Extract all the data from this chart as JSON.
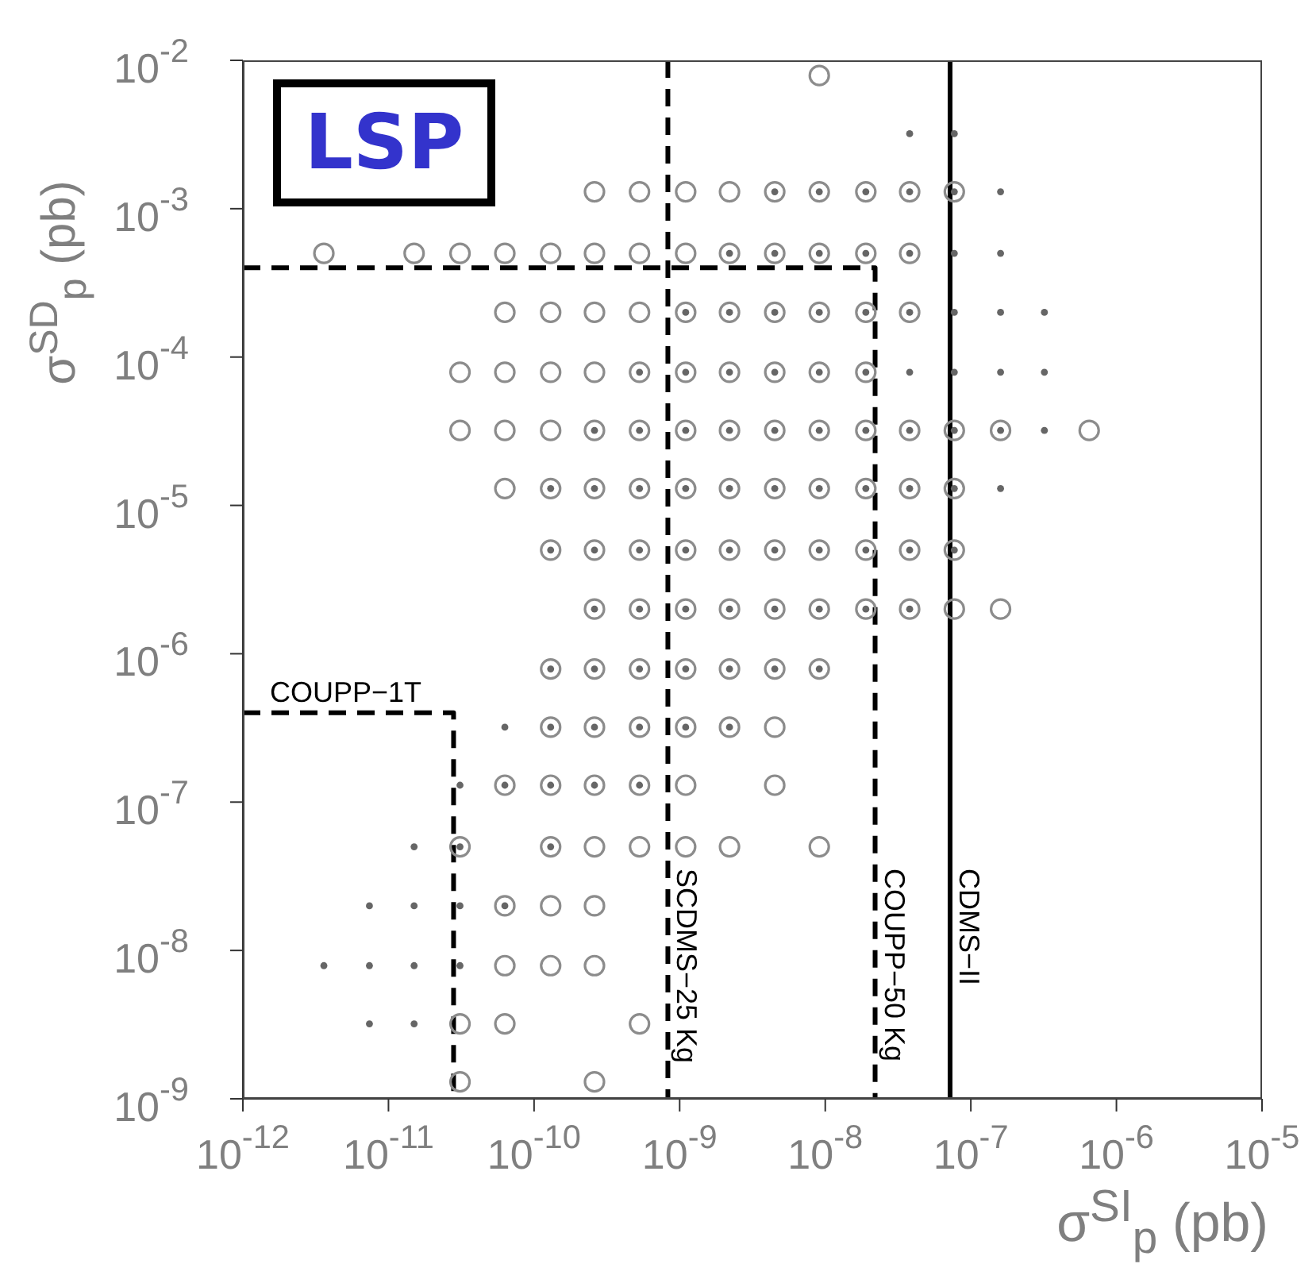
{
  "chart_data": {
    "type": "scatter",
    "xlabel": "σ$^{SI}$$_{p}$ (pb)",
    "ylabel": "σ$^{SD}$$_{p}$ (pb)",
    "annotations": [
      "LSP"
    ],
    "log": "xy",
    "grid": false,
    "legend": false,
    "xlim": [
      1e-12,
      1e-05
    ],
    "ylim": [
      1e-09,
      0.01
    ],
    "xticks": [
      {
        "value": 1e-12,
        "label": "10$^{-12}$"
      },
      {
        "value": 1e-11,
        "label": "10$^{-11}$"
      },
      {
        "value": 1e-10,
        "label": "10$^{-10}$"
      },
      {
        "value": 1e-09,
        "label": "10$^{-9}$"
      },
      {
        "value": 1e-08,
        "label": "10$^{-8}$"
      },
      {
        "value": 1e-07,
        "label": "10$^{-7}$"
      },
      {
        "value": 1e-06,
        "label": "10$^{-6}$"
      },
      {
        "value": 1e-05,
        "label": "10$^{-5}$"
      }
    ],
    "yticks": [
      {
        "value": 1e-09,
        "label": "10$^{-9}$"
      },
      {
        "value": 1e-08,
        "label": "10$^{-8}$"
      },
      {
        "value": 1e-07,
        "label": "10$^{-7}$"
      },
      {
        "value": 1e-06,
        "label": "10$^{-6}$"
      },
      {
        "value": 1e-05,
        "label": "10$^{-5}$"
      },
      {
        "value": 0.0001,
        "label": "10$^{-4}$"
      },
      {
        "value": 0.001,
        "label": "10$^{-3}$"
      },
      {
        "value": 0.01,
        "label": "10$^{-2}$"
      }
    ],
    "series": [
      {
        "type": "scatter",
        "marker": "circle",
        "color": "#8c8c8c",
        "x": [
          9.1e-09,
          2.6e-10,
          5.3e-10,
          1.1e-09,
          2.2e-09,
          4.5e-09,
          9.1e-09,
          1.9e-08,
          3.8e-08,
          7.7e-08,
          3.6e-12,
          1.5e-11,
          3.1e-11,
          6.3e-11,
          1.3e-10,
          2.6e-10,
          5.3e-10,
          1.1e-09,
          2.2e-09,
          4.5e-09,
          9.1e-09,
          1.9e-08,
          3.8e-08,
          6.3e-11,
          1.3e-10,
          2.6e-10,
          5.3e-10,
          1.1e-09,
          2.2e-09,
          4.5e-09,
          9.1e-09,
          1.9e-08,
          3.8e-08,
          3.1e-11,
          6.3e-11,
          1.3e-10,
          2.6e-10,
          5.3e-10,
          1.1e-09,
          2.2e-09,
          4.5e-09,
          9.1e-09,
          1.9e-08,
          3.1e-11,
          6.3e-11,
          1.3e-10,
          2.6e-10,
          5.3e-10,
          1.1e-09,
          2.2e-09,
          4.5e-09,
          9.1e-09,
          1.9e-08,
          3.8e-08,
          7.7e-08,
          1.6e-07,
          6.5e-07,
          6.3e-11,
          1.3e-10,
          2.6e-10,
          5.3e-10,
          1.1e-09,
          2.2e-09,
          4.5e-09,
          9.1e-09,
          1.9e-08,
          3.8e-08,
          7.7e-08,
          1.3e-10,
          2.6e-10,
          5.3e-10,
          1.1e-09,
          2.2e-09,
          4.5e-09,
          9.1e-09,
          1.9e-08,
          3.8e-08,
          7.7e-08,
          2.6e-10,
          5.3e-10,
          1.1e-09,
          2.2e-09,
          4.5e-09,
          9.1e-09,
          1.9e-08,
          3.8e-08,
          7.7e-08,
          1.6e-07,
          1.3e-10,
          2.6e-10,
          5.3e-10,
          1.1e-09,
          2.2e-09,
          4.5e-09,
          9.1e-09,
          1.3e-10,
          2.6e-10,
          5.3e-10,
          1.1e-09,
          2.2e-09,
          4.5e-09,
          6.3e-11,
          1.3e-10,
          2.6e-10,
          5.3e-10,
          1.1e-09,
          4.5e-09,
          3.1e-11,
          1.3e-10,
          2.6e-10,
          5.3e-10,
          1.1e-09,
          2.2e-09,
          9.1e-09,
          6.3e-11,
          1.3e-10,
          2.6e-10,
          6.3e-11,
          1.3e-10,
          2.6e-10,
          3.1e-11,
          6.3e-11,
          5.3e-10,
          3.1e-11,
          2.6e-10
        ],
        "values": [
          0.0079,
          0.0013,
          0.0013,
          0.0013,
          0.0013,
          0.0013,
          0.0013,
          0.0013,
          0.0013,
          0.0013,
          0.0005,
          0.0005,
          0.0005,
          0.0005,
          0.0005,
          0.0005,
          0.0005,
          0.0005,
          0.0005,
          0.0005,
          0.0005,
          0.0005,
          0.0005,
          0.0002,
          0.0002,
          0.0002,
          0.0002,
          0.0002,
          0.0002,
          0.0002,
          0.0002,
          0.0002,
          0.0002,
          7.9e-05,
          7.9e-05,
          7.9e-05,
          7.9e-05,
          7.9e-05,
          7.9e-05,
          7.9e-05,
          7.9e-05,
          7.9e-05,
          7.9e-05,
          3.2e-05,
          3.2e-05,
          3.2e-05,
          3.2e-05,
          3.2e-05,
          3.2e-05,
          3.2e-05,
          3.2e-05,
          3.2e-05,
          3.2e-05,
          3.2e-05,
          3.2e-05,
          3.2e-05,
          3.2e-05,
          1.3e-05,
          1.3e-05,
          1.3e-05,
          1.3e-05,
          1.3e-05,
          1.3e-05,
          1.3e-05,
          1.3e-05,
          1.3e-05,
          1.3e-05,
          1.3e-05,
          5e-06,
          5e-06,
          5e-06,
          5e-06,
          5e-06,
          5e-06,
          5e-06,
          5e-06,
          5e-06,
          5e-06,
          2e-06,
          2e-06,
          2e-06,
          2e-06,
          2e-06,
          2e-06,
          2e-06,
          2e-06,
          2e-06,
          2e-06,
          7.9e-07,
          7.9e-07,
          7.9e-07,
          7.9e-07,
          7.9e-07,
          7.9e-07,
          7.9e-07,
          3.2e-07,
          3.2e-07,
          3.2e-07,
          3.2e-07,
          3.2e-07,
          3.2e-07,
          1.3e-07,
          1.3e-07,
          1.3e-07,
          1.3e-07,
          1.3e-07,
          1.3e-07,
          5e-08,
          5e-08,
          5e-08,
          5e-08,
          5e-08,
          5e-08,
          5e-08,
          2e-08,
          2e-08,
          2e-08,
          7.9e-09,
          7.9e-09,
          7.9e-09,
          3.2e-09,
          3.2e-09,
          3.2e-09,
          1.3e-09,
          1.3e-09
        ]
      },
      {
        "type": "scatter",
        "marker": "circle",
        "color": "#666666",
        "x": [
          3.8e-08,
          7.7e-08,
          4.5e-09,
          9.1e-09,
          1.9e-08,
          3.8e-08,
          7.7e-08,
          1.6e-07,
          2.2e-09,
          4.5e-09,
          9.1e-09,
          1.9e-08,
          3.8e-08,
          7.7e-08,
          1.6e-07,
          1.1e-09,
          2.2e-09,
          4.5e-09,
          9.1e-09,
          1.9e-08,
          3.8e-08,
          7.7e-08,
          1.6e-07,
          3.2e-07,
          5.3e-10,
          1.1e-09,
          2.2e-09,
          4.5e-09,
          9.1e-09,
          1.9e-08,
          3.8e-08,
          7.7e-08,
          1.6e-07,
          3.2e-07,
          2.6e-10,
          5.3e-10,
          1.1e-09,
          2.2e-09,
          4.5e-09,
          9.1e-09,
          1.9e-08,
          3.8e-08,
          7.7e-08,
          1.6e-07,
          3.2e-07,
          1.3e-10,
          2.6e-10,
          5.3e-10,
          1.1e-09,
          2.2e-09,
          4.5e-09,
          9.1e-09,
          1.9e-08,
          3.8e-08,
          7.7e-08,
          1.6e-07,
          1.3e-10,
          2.6e-10,
          5.3e-10,
          1.1e-09,
          2.2e-09,
          4.5e-09,
          9.1e-09,
          1.9e-08,
          3.8e-08,
          7.7e-08,
          2.6e-10,
          5.3e-10,
          1.1e-09,
          2.2e-09,
          4.5e-09,
          9.1e-09,
          1.9e-08,
          3.8e-08,
          1.3e-10,
          2.6e-10,
          5.3e-10,
          1.1e-09,
          2.2e-09,
          4.5e-09,
          9.1e-09,
          6.3e-11,
          1.3e-10,
          2.6e-10,
          5.3e-10,
          1.1e-09,
          2.2e-09,
          3.1e-11,
          6.3e-11,
          1.3e-10,
          2.6e-10,
          5.3e-10,
          1.5e-11,
          3.1e-11,
          1.3e-10,
          7.4e-12,
          1.5e-11,
          3.1e-11,
          6.3e-11,
          3.6e-12,
          7.4e-12,
          1.5e-11,
          3.1e-11,
          7.4e-12,
          1.5e-11
        ],
        "values": [
          0.0032,
          0.0032,
          0.0013,
          0.0013,
          0.0013,
          0.0013,
          0.0013,
          0.0013,
          0.0005,
          0.0005,
          0.0005,
          0.0005,
          0.0005,
          0.0005,
          0.0005,
          0.0002,
          0.0002,
          0.0002,
          0.0002,
          0.0002,
          0.0002,
          0.0002,
          0.0002,
          0.0002,
          7.9e-05,
          7.9e-05,
          7.9e-05,
          7.9e-05,
          7.9e-05,
          7.9e-05,
          7.9e-05,
          7.9e-05,
          7.9e-05,
          7.9e-05,
          3.2e-05,
          3.2e-05,
          3.2e-05,
          3.2e-05,
          3.2e-05,
          3.2e-05,
          3.2e-05,
          3.2e-05,
          3.2e-05,
          3.2e-05,
          3.2e-05,
          1.3e-05,
          1.3e-05,
          1.3e-05,
          1.3e-05,
          1.3e-05,
          1.3e-05,
          1.3e-05,
          1.3e-05,
          1.3e-05,
          1.3e-05,
          1.3e-05,
          5e-06,
          5e-06,
          5e-06,
          5e-06,
          5e-06,
          5e-06,
          5e-06,
          5e-06,
          5e-06,
          5e-06,
          2e-06,
          2e-06,
          2e-06,
          2e-06,
          2e-06,
          2e-06,
          2e-06,
          2e-06,
          7.9e-07,
          7.9e-07,
          7.9e-07,
          7.9e-07,
          7.9e-07,
          7.9e-07,
          7.9e-07,
          3.2e-07,
          3.2e-07,
          3.2e-07,
          3.2e-07,
          3.2e-07,
          3.2e-07,
          1.3e-07,
          1.3e-07,
          1.3e-07,
          1.3e-07,
          1.3e-07,
          5e-08,
          5e-08,
          5e-08,
          2e-08,
          2e-08,
          2e-08,
          2e-08,
          7.9e-09,
          7.9e-09,
          7.9e-09,
          7.9e-09,
          3.2e-09,
          3.2e-09
        ]
      },
      {
        "type": "line",
        "name": "SCDMS−25 Kg",
        "color": "#000000",
        "line_style": "dashed",
        "marker": "none",
        "x": [
          8.3e-10,
          8.3e-10
        ],
        "values": [
          0.01,
          1e-09
        ]
      },
      {
        "type": "line",
        "name": "COUPP−50 Kg",
        "color": "#000000",
        "line_style": "dashed",
        "marker": "none",
        "x": [
          1e-12,
          2.2e-08,
          2.2e-08
        ],
        "values": [
          0.0004,
          0.0004,
          1e-09
        ]
      },
      {
        "type": "line",
        "name": "CDMS−II",
        "color": "#000000",
        "line_style": "solid",
        "marker": "none",
        "x": [
          7.2e-08,
          7.2e-08
        ],
        "values": [
          0.01,
          1e-09
        ]
      },
      {
        "type": "line",
        "name": "COUPP−1T",
        "color": "#000000",
        "line_style": "dashed",
        "marker": "none",
        "x": [
          1e-12,
          2.8e-11,
          2.8e-11
        ],
        "values": [
          4e-07,
          4e-07,
          1e-09
        ]
      }
    ]
  }
}
